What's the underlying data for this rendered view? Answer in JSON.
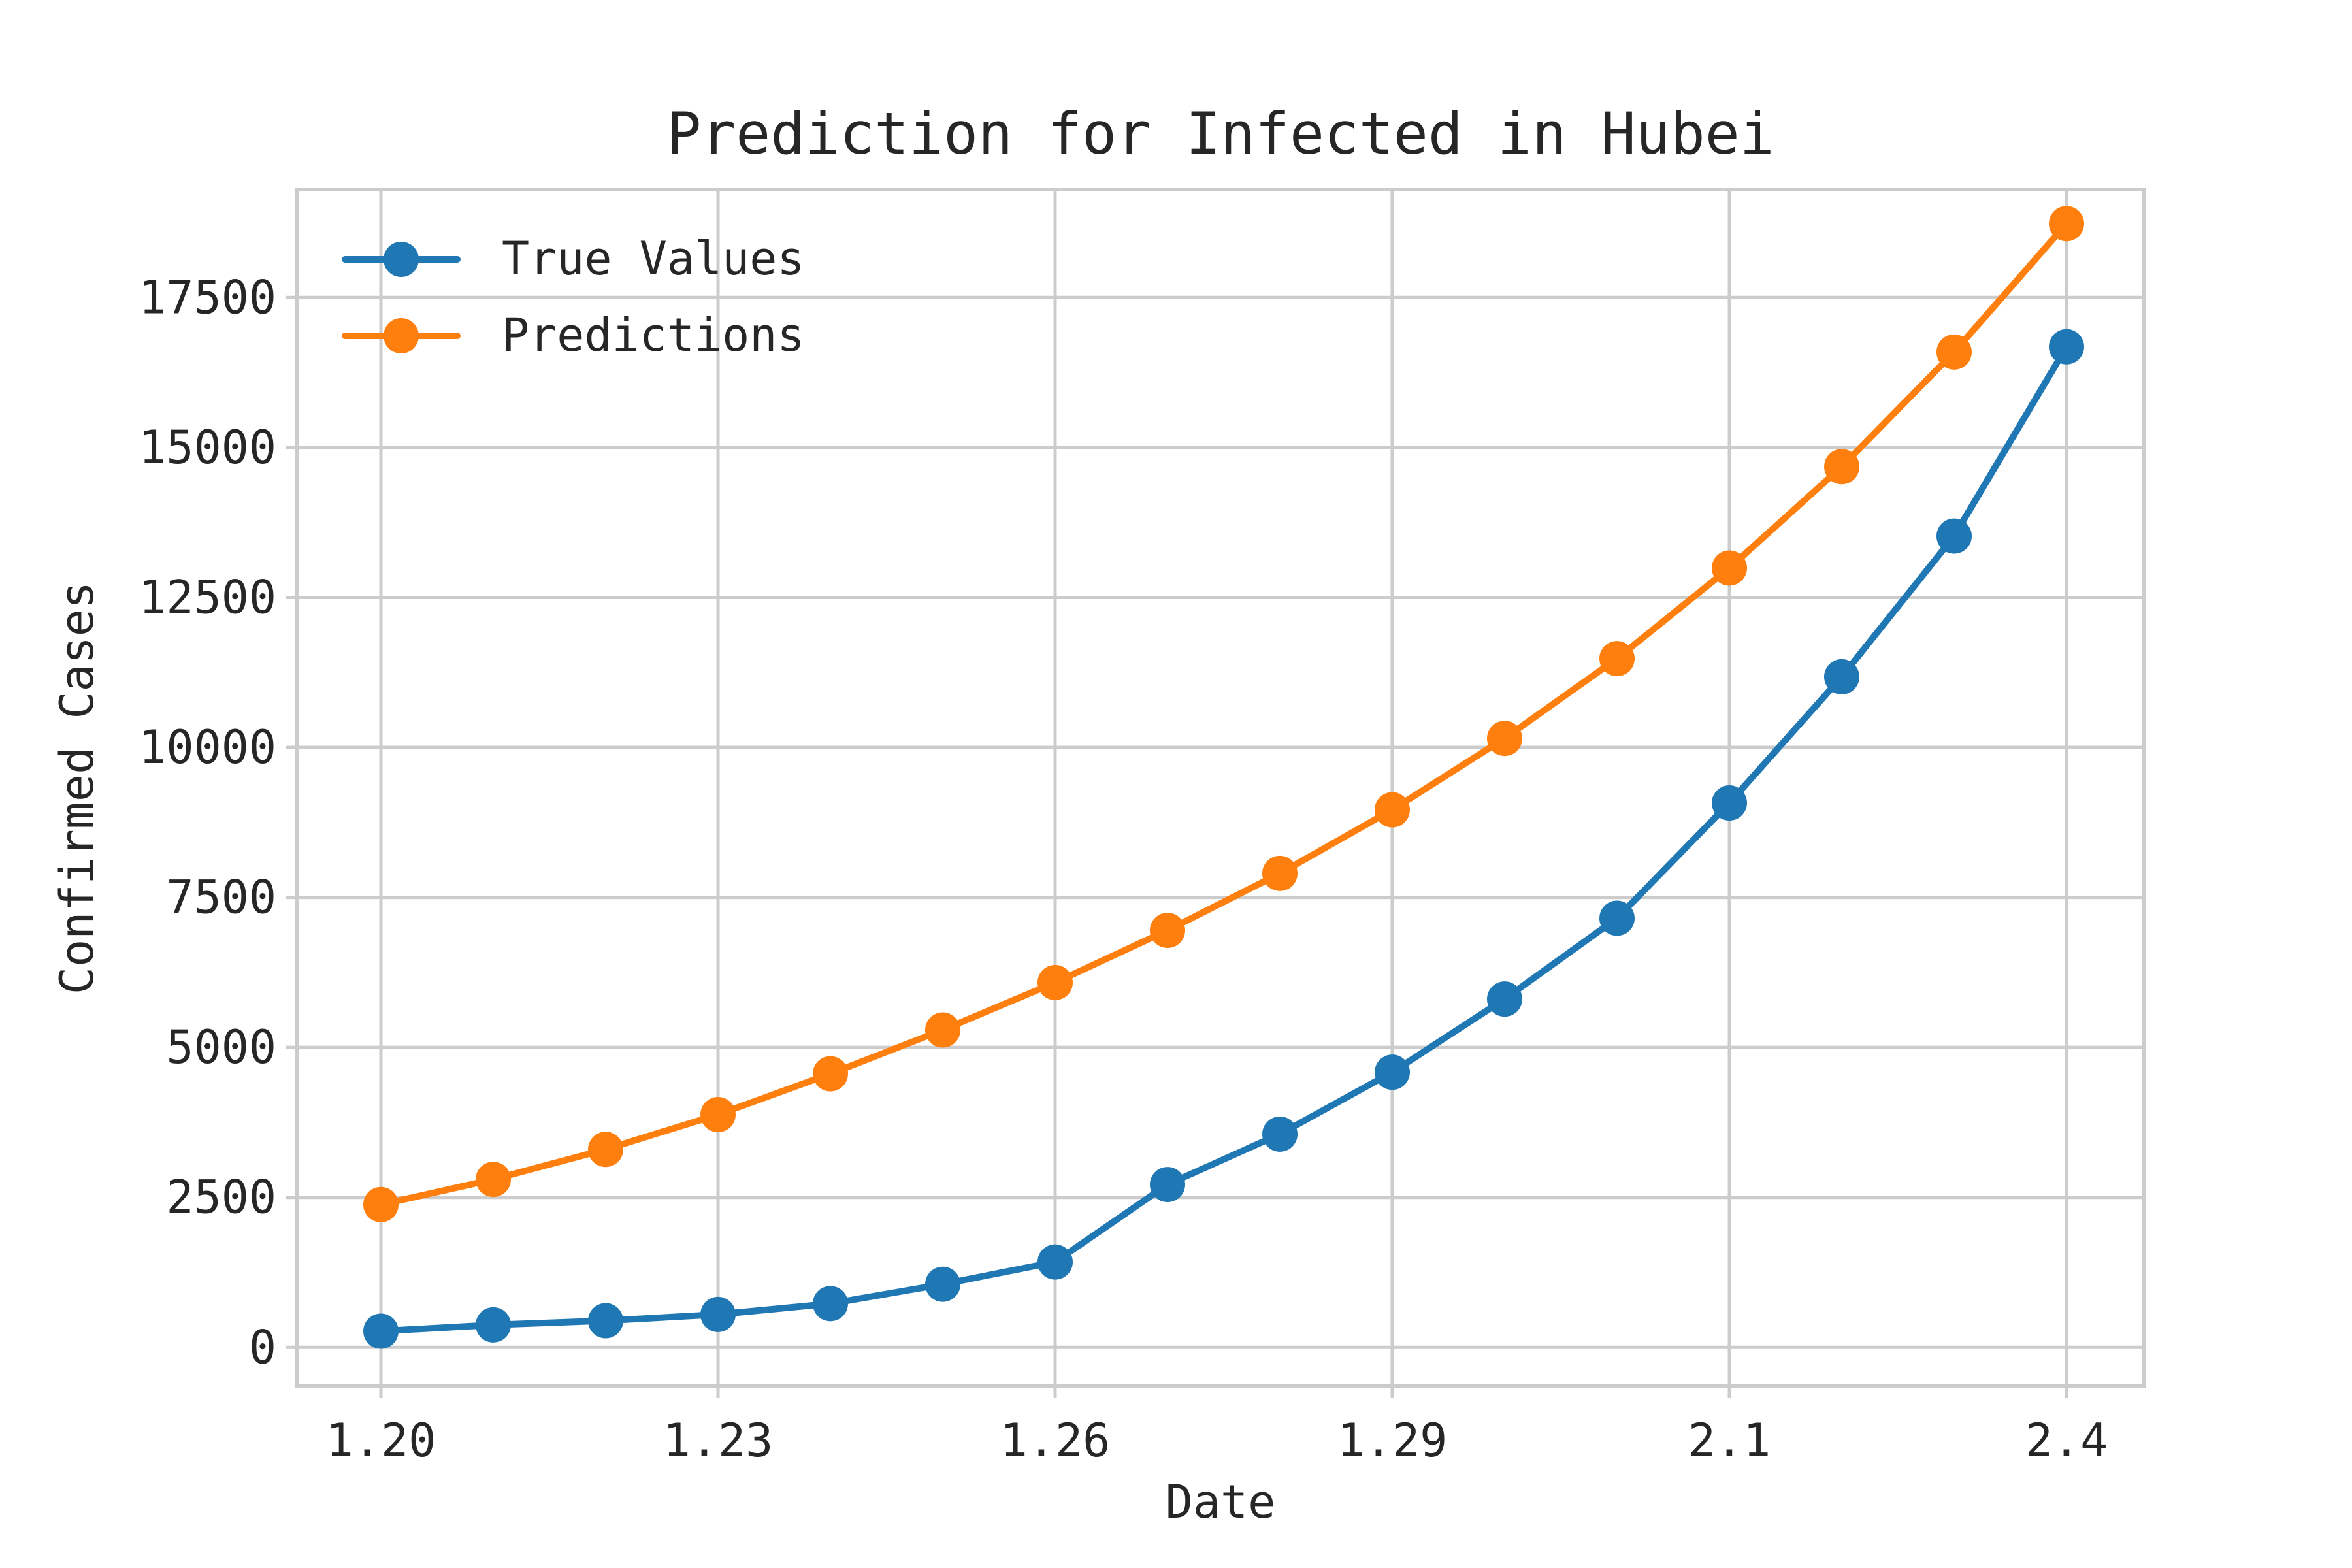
{
  "chart_data": {
    "type": "line",
    "title": "Prediction for Infected in Hubei",
    "xlabel": "Date",
    "ylabel": "Confirmed Cases",
    "categories": [
      "1.20",
      "1.21",
      "1.22",
      "1.23",
      "1.24",
      "1.25",
      "1.26",
      "1.27",
      "1.28",
      "1.29",
      "1.30",
      "1.31",
      "2.1",
      "2.2",
      "2.3",
      "2.4"
    ],
    "x_tick_labels": [
      "1.20",
      "1.23",
      "1.26",
      "1.29",
      "2.1",
      "2.4"
    ],
    "y_ticks": [
      0,
      2500,
      5000,
      7500,
      10000,
      12500,
      15000,
      17500
    ],
    "ylim": [
      -650,
      19300
    ],
    "grid": true,
    "legend": "upper-left",
    "series": [
      {
        "name": "True Values",
        "color": "#1f77b4",
        "values": [
          270,
          375,
          444,
          549,
          729,
          1052,
          1423,
          2714,
          3554,
          4586,
          5806,
          7153,
          9074,
          11177,
          13522,
          16678
        ]
      },
      {
        "name": "Predictions",
        "color": "#ff7f0e",
        "values": [
          2380,
          2800,
          3300,
          3880,
          4560,
          5290,
          6080,
          6950,
          7900,
          8960,
          10150,
          11480,
          12990,
          14680,
          16590,
          18730
        ]
      }
    ]
  }
}
